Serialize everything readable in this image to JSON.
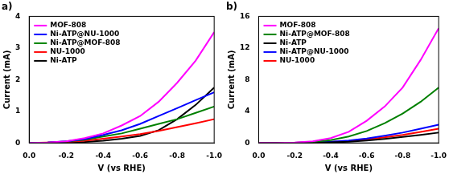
{
  "chart_data": [
    {
      "type": "line",
      "title": "a)",
      "x_label": "V (vs RHE)",
      "y_label": "Current (mA)",
      "x": [
        0,
        -0.1,
        -0.2,
        -0.3,
        -0.4,
        -0.5,
        -0.6,
        -0.7,
        -0.8,
        -0.9,
        -1.0
      ],
      "series": [
        {
          "name": "MOF-808",
          "color": "#ff00ff",
          "values": [
            0,
            0.01,
            0.05,
            0.15,
            0.3,
            0.55,
            0.85,
            1.3,
            1.9,
            2.6,
            3.5
          ]
        },
        {
          "name": "Ni-ATP@NU-1000",
          "color": "#0000ff",
          "values": [
            0,
            0.01,
            0.05,
            0.12,
            0.25,
            0.4,
            0.6,
            0.85,
            1.1,
            1.35,
            1.6
          ]
        },
        {
          "name": "Ni-ATP@MOF-808",
          "color": "#008000",
          "values": [
            0,
            0.01,
            0.04,
            0.1,
            0.2,
            0.3,
            0.45,
            0.6,
            0.75,
            0.95,
            1.15
          ]
        },
        {
          "name": "NU-1000",
          "color": "#ff0000",
          "values": [
            0,
            0.01,
            0.03,
            0.07,
            0.13,
            0.2,
            0.28,
            0.38,
            0.5,
            0.62,
            0.75
          ]
        },
        {
          "name": "Ni-ATP",
          "color": "#000000",
          "values": [
            0,
            0,
            0.01,
            0.03,
            0.07,
            0.13,
            0.22,
            0.4,
            0.75,
            1.2,
            1.75
          ]
        }
      ],
      "xlim": [
        0,
        -1.0
      ],
      "xticks": [
        {
          "value": 0,
          "label": "0.0"
        },
        -0.2,
        -0.4,
        -0.6,
        -0.8,
        {
          "value": -1.0,
          "label": "-1.0"
        }
      ],
      "ylim": [
        0,
        4
      ],
      "yticks": [
        0,
        1,
        2,
        3,
        4
      ],
      "grid": false,
      "legend": "upper left"
    },
    {
      "type": "line",
      "title": "b)",
      "x_label": "V (vs RHE)",
      "y_label": "Current (mA)",
      "x": [
        0,
        -0.1,
        -0.2,
        -0.3,
        -0.4,
        -0.5,
        -0.6,
        -0.7,
        -0.8,
        -0.9,
        -1.0
      ],
      "series": [
        {
          "name": "MOF-808",
          "color": "#ff00ff",
          "values": [
            0,
            0,
            0.05,
            0.2,
            0.6,
            1.4,
            2.8,
            4.6,
            7,
            10.5,
            14.5
          ]
        },
        {
          "name": "Ni-ATP@MOF-808",
          "color": "#008000",
          "values": [
            0,
            0,
            0.03,
            0.12,
            0.35,
            0.8,
            1.5,
            2.5,
            3.7,
            5.2,
            7
          ]
        },
        {
          "name": "Ni-ATP",
          "color": "#000000",
          "values": [
            0,
            0,
            0.01,
            0.03,
            0.08,
            0.15,
            0.3,
            0.5,
            0.75,
            1.0,
            1.3
          ]
        },
        {
          "name": "Ni-ATP@NU-1000",
          "color": "#0000ff",
          "values": [
            0,
            0,
            0.02,
            0.06,
            0.15,
            0.3,
            0.55,
            0.9,
            1.3,
            1.8,
            2.3
          ]
        },
        {
          "name": "NU-1000",
          "color": "#ff0000",
          "values": [
            0,
            0,
            0.02,
            0.05,
            0.12,
            0.25,
            0.45,
            0.7,
            1.0,
            1.4,
            1.8
          ]
        }
      ],
      "xlim": [
        0,
        -1.0
      ],
      "xticks": [
        {
          "value": 0,
          "label": "0.0"
        },
        -0.2,
        -0.4,
        -0.6,
        -0.8,
        {
          "value": -1.0,
          "label": "-1.0"
        }
      ],
      "ylim": [
        0,
        16
      ],
      "yticks": [
        0,
        4,
        8,
        12,
        16
      ],
      "grid": false,
      "legend": "upper left"
    }
  ]
}
